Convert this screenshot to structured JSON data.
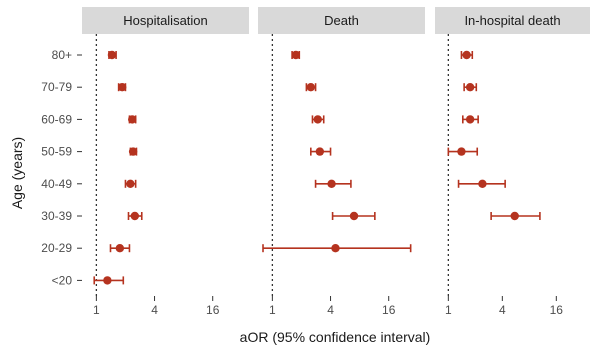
{
  "chart_data": {
    "type": "scatter",
    "xlabel": "aOR (95% confidence interval)",
    "ylabel": "Age (years)",
    "x_scale": "log2",
    "xticks": [
      1,
      4,
      16
    ],
    "xtick_labels": [
      "1",
      "4",
      "16"
    ],
    "reference_line": 1,
    "color": "#b5331f",
    "categories": [
      "80+",
      "70-79",
      "60-69",
      "50-59",
      "40-49",
      "30-39",
      "20-29",
      "<20"
    ],
    "panels": [
      {
        "title": "Hospitalisation",
        "xlim": [
          0.71,
          38
        ],
        "points": [
          {
            "category": "80+",
            "estimate": 1.45,
            "lower": 1.35,
            "upper": 1.6
          },
          {
            "category": "70-79",
            "estimate": 1.85,
            "lower": 1.7,
            "upper": 2.0
          },
          {
            "category": "60-69",
            "estimate": 2.35,
            "lower": 2.2,
            "upper": 2.55
          },
          {
            "category": "50-59",
            "estimate": 2.4,
            "lower": 2.25,
            "upper": 2.6
          },
          {
            "category": "40-49",
            "estimate": 2.25,
            "lower": 2.0,
            "upper": 2.55
          },
          {
            "category": "30-39",
            "estimate": 2.5,
            "lower": 2.15,
            "upper": 2.95
          },
          {
            "category": "20-29",
            "estimate": 1.75,
            "lower": 1.4,
            "upper": 2.2
          },
          {
            "category": "<20",
            "estimate": 1.3,
            "lower": 0.95,
            "upper": 1.9
          }
        ]
      },
      {
        "title": "Death",
        "xlim": [
          0.71,
          38
        ],
        "points": [
          {
            "category": "80+",
            "estimate": 1.75,
            "lower": 1.6,
            "upper": 1.9
          },
          {
            "category": "70-79",
            "estimate": 2.5,
            "lower": 2.25,
            "upper": 2.8
          },
          {
            "category": "60-69",
            "estimate": 2.95,
            "lower": 2.6,
            "upper": 3.4
          },
          {
            "category": "50-59",
            "estimate": 3.1,
            "lower": 2.5,
            "upper": 4.0
          },
          {
            "category": "40-49",
            "estimate": 4.1,
            "lower": 2.8,
            "upper": 6.5
          },
          {
            "category": "30-39",
            "estimate": 7.0,
            "lower": 4.2,
            "upper": 11.5
          },
          {
            "category": "20-29",
            "estimate": 4.5,
            "lower": 0.8,
            "upper": 27
          }
        ]
      },
      {
        "title": "In-hospital death",
        "xlim": [
          0.71,
          38
        ],
        "points": [
          {
            "category": "80+",
            "estimate": 1.6,
            "lower": 1.4,
            "upper": 1.85
          },
          {
            "category": "70-79",
            "estimate": 1.75,
            "lower": 1.5,
            "upper": 2.05
          },
          {
            "category": "60-69",
            "estimate": 1.75,
            "lower": 1.45,
            "upper": 2.15
          },
          {
            "category": "50-59",
            "estimate": 1.4,
            "lower": 1.0,
            "upper": 2.1
          },
          {
            "category": "40-49",
            "estimate": 2.4,
            "lower": 1.3,
            "upper": 4.3
          },
          {
            "category": "30-39",
            "estimate": 5.5,
            "lower": 3.0,
            "upper": 10.5
          }
        ]
      }
    ]
  }
}
